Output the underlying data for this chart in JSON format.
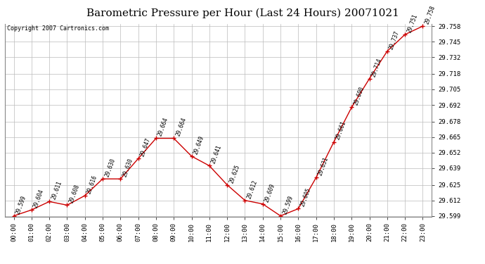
{
  "title": "Barometric Pressure per Hour (Last 24 Hours) 20071021",
  "copyright": "Copyright 2007 Cartronics.com",
  "hours": [
    "00:00",
    "01:00",
    "02:00",
    "03:00",
    "04:00",
    "05:00",
    "06:00",
    "07:00",
    "08:00",
    "09:00",
    "10:00",
    "11:00",
    "12:00",
    "13:00",
    "14:00",
    "15:00",
    "16:00",
    "17:00",
    "18:00",
    "19:00",
    "20:00",
    "21:00",
    "22:00",
    "23:00"
  ],
  "values": [
    29.599,
    29.604,
    29.611,
    29.608,
    29.616,
    29.63,
    29.63,
    29.647,
    29.664,
    29.664,
    29.649,
    29.641,
    29.625,
    29.612,
    29.609,
    29.599,
    29.605,
    29.631,
    29.661,
    29.69,
    29.714,
    29.737,
    29.751,
    29.758
  ],
  "ylim_min": 29.599,
  "ylim_max": 29.758,
  "ytick_values": [
    29.599,
    29.612,
    29.625,
    29.639,
    29.652,
    29.665,
    29.678,
    29.692,
    29.705,
    29.718,
    29.732,
    29.745,
    29.758
  ],
  "line_color": "#cc0000",
  "marker_color": "#cc0000",
  "background_color": "#ffffff",
  "grid_color": "#bbbbbb",
  "title_fontsize": 11,
  "copyright_fontsize": 6,
  "label_fontsize": 5.5,
  "tick_fontsize": 6.5
}
